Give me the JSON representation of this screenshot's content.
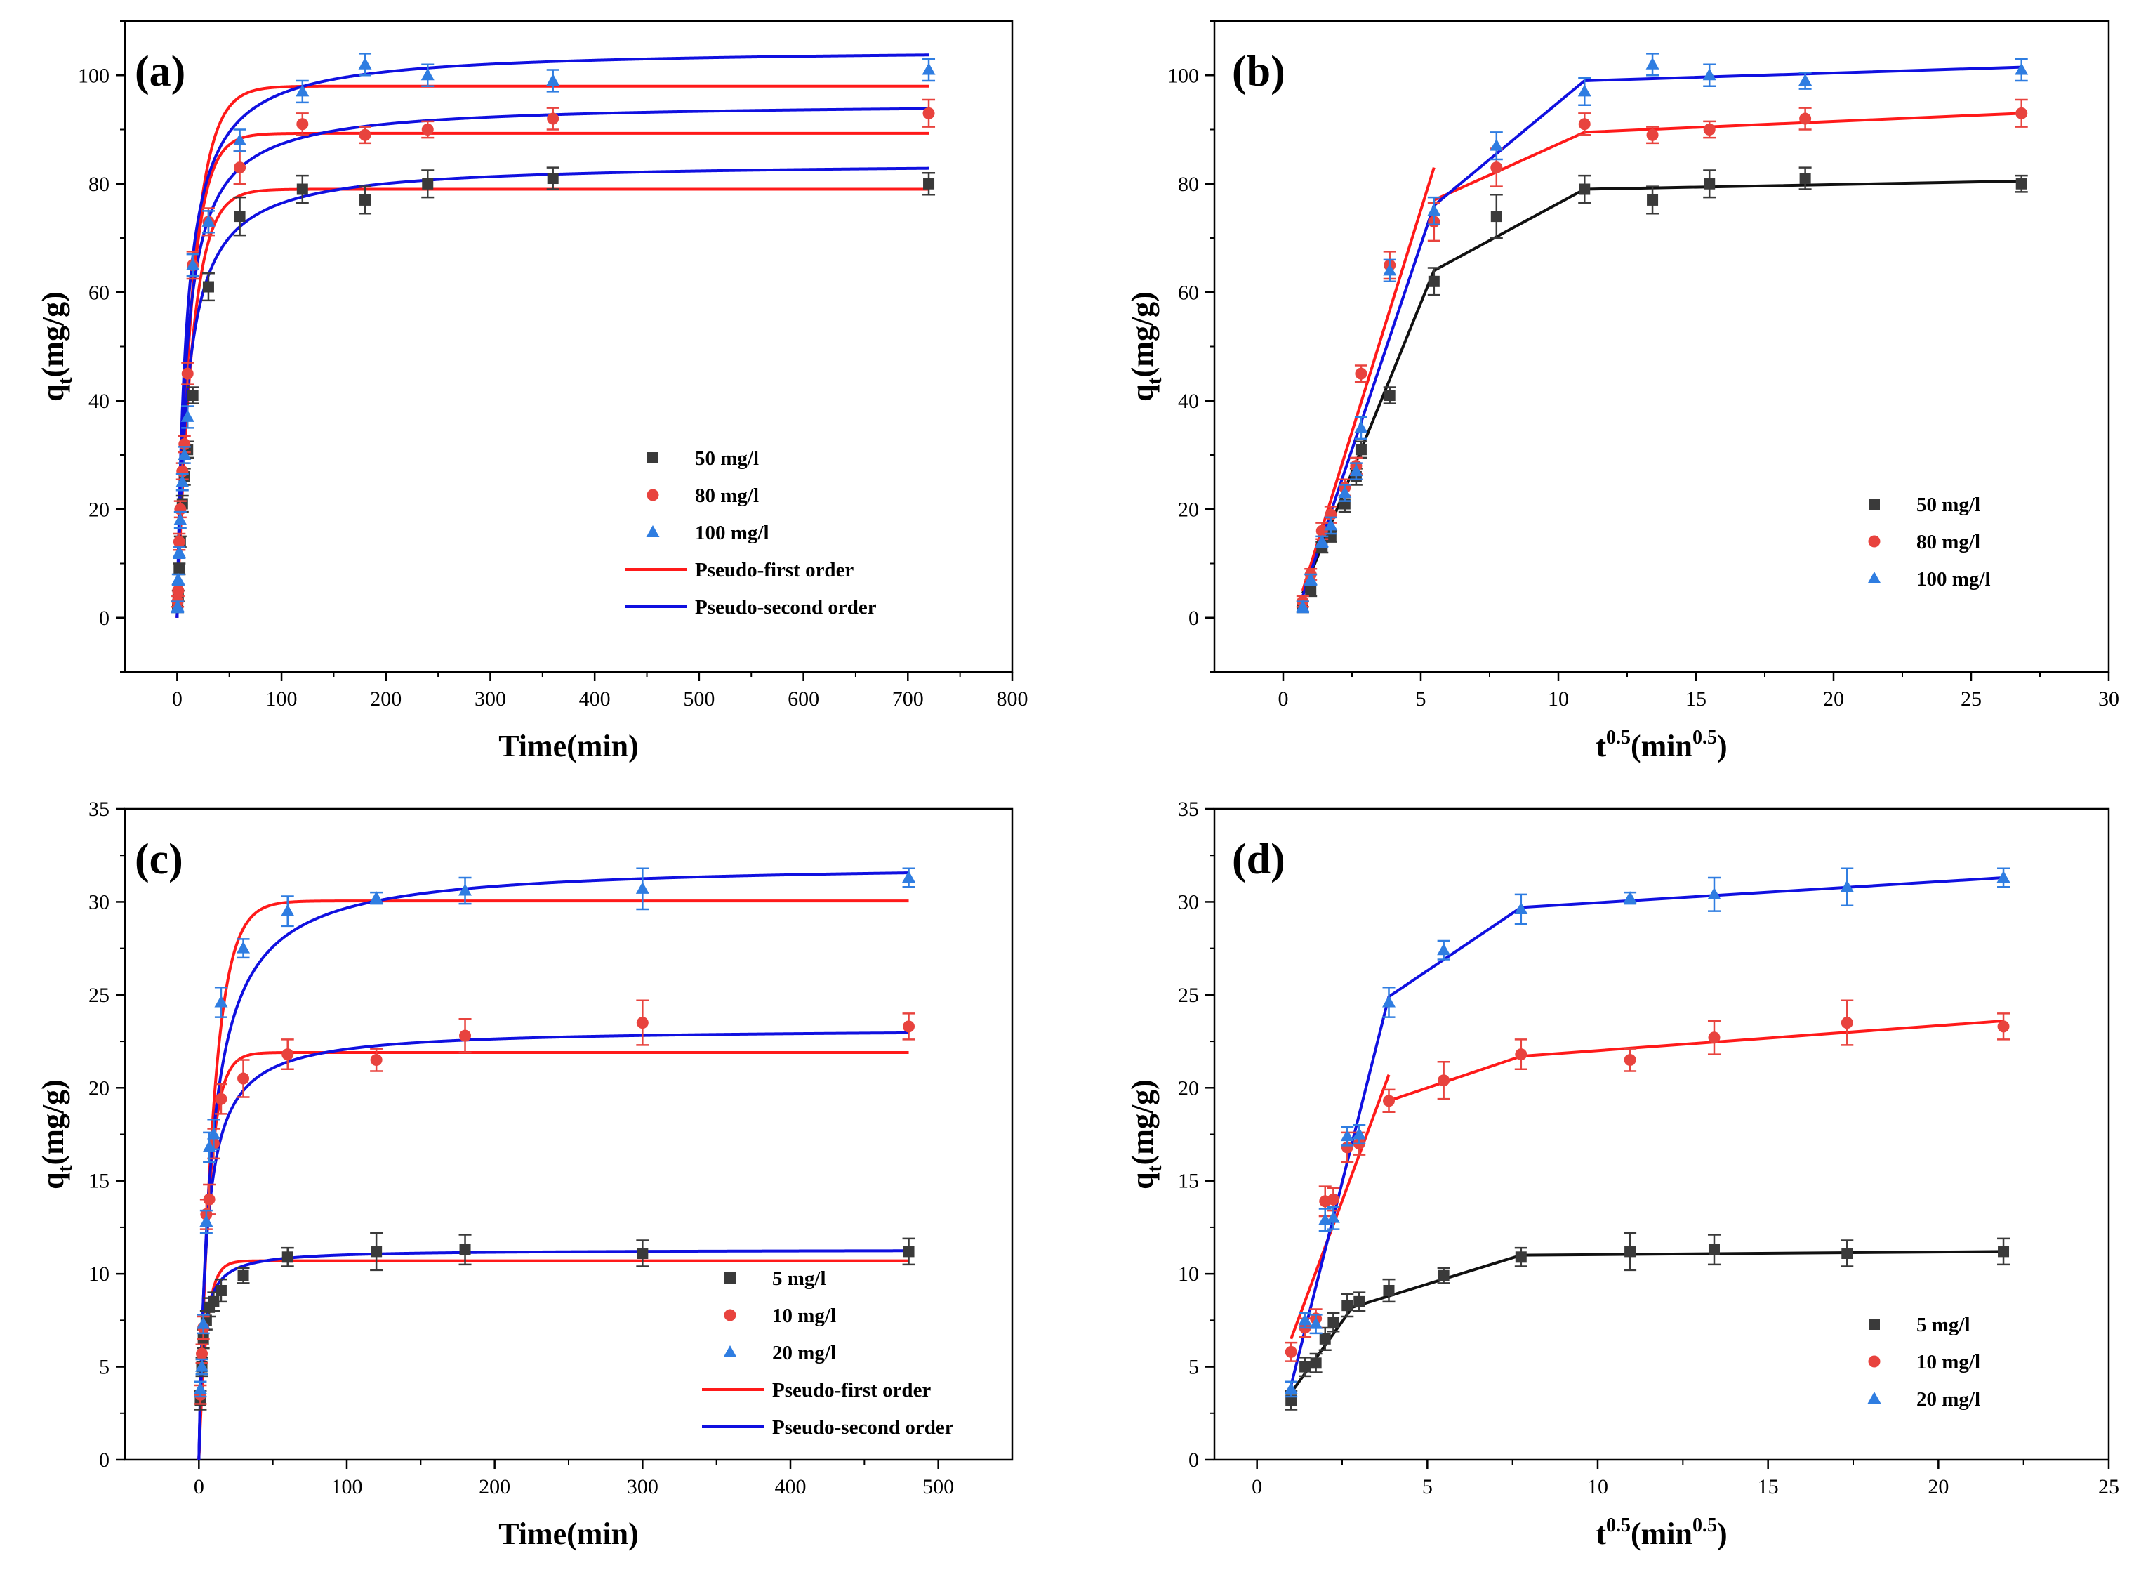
{
  "colors": {
    "black_series": "#3a3a3a",
    "red_series": "#e8433e",
    "blue_series": "#2f7de1",
    "pfo_line": "#ff1a1a",
    "pso_line": "#1010e0"
  },
  "chart_data": [
    {
      "type": "scatter",
      "panel_label": "(a)",
      "xlabel": "Time(min)",
      "ylabel_main": "q",
      "ylabel_sub": "t",
      "ylabel_unit": "(mg/g)",
      "xlim": [
        -50,
        800
      ],
      "ylim": [
        -10,
        110
      ],
      "xticks": [
        0,
        100,
        200,
        300,
        400,
        500,
        600,
        700,
        800
      ],
      "yticks": [
        0,
        20,
        40,
        60,
        80,
        100
      ],
      "x": [
        0.5,
        1,
        2,
        3,
        5,
        7,
        10,
        15,
        30,
        60,
        120,
        180,
        240,
        360,
        720
      ],
      "series": [
        {
          "name": "50 mg/l",
          "marker": "square",
          "color": "#3a3a3a",
          "values": [
            2,
            4,
            9,
            14,
            21,
            26,
            31,
            41,
            61,
            74,
            79,
            77,
            80,
            81,
            80
          ],
          "err": [
            1,
            1,
            1,
            1,
            1.5,
            1.5,
            1.5,
            1.5,
            2.5,
            3.5,
            2.5,
            2.5,
            2.5,
            2,
            2
          ]
        },
        {
          "name": "80 mg/l",
          "marker": "circle",
          "color": "#e8433e",
          "values": [
            3,
            5,
            14,
            20,
            27,
            32,
            45,
            65,
            73,
            83,
            91,
            89,
            90,
            92,
            93
          ],
          "err": [
            1,
            1,
            1.5,
            1.5,
            1.5,
            1.5,
            2,
            2.5,
            2.5,
            3,
            2,
            1.5,
            1.5,
            2,
            2.5
          ]
        },
        {
          "name": "100 mg/l",
          "marker": "triangle",
          "color": "#2f7de1",
          "values": [
            2,
            7,
            12,
            18,
            25,
            30,
            37,
            65,
            73,
            88,
            97,
            102,
            100,
            99,
            101
          ],
          "err": [
            1,
            1,
            1,
            1.5,
            1.5,
            1.5,
            2,
            2,
            2,
            2,
            2,
            2,
            2,
            2,
            2
          ]
        }
      ],
      "fits": [
        {
          "name": "Pseudo-first order",
          "kind": "pfo",
          "color": "#ff1a1a",
          "curves": [
            [
              79,
              0.07
            ],
            [
              89.3,
              0.075
            ],
            [
              98,
              0.065
            ]
          ]
        },
        {
          "name": "Pseudo-second order",
          "kind": "pso",
          "color": "#1010e0",
          "curves": [
            [
              84,
              0.0012
            ],
            [
              95,
              0.0012
            ],
            [
              105,
              0.0011
            ]
          ]
        }
      ],
      "legend_position": "lower-right"
    },
    {
      "type": "line",
      "panel_label": "(b)",
      "xlabel_main": "t",
      "xlabel_sup": "0.5",
      "xlabel_mid": "(min",
      "xlabel_sup2": "0.5",
      "xlabel_end": ")",
      "ylabel_main": "q",
      "ylabel_sub": "t",
      "ylabel_unit": "(mg/g)",
      "xlim": [
        -2.5,
        30
      ],
      "ylim": [
        -10,
        110
      ],
      "xticks": [
        0,
        5,
        10,
        15,
        20,
        25,
        30
      ],
      "yticks": [
        0,
        20,
        40,
        60,
        80,
        100
      ],
      "x": [
        0.71,
        1,
        1.41,
        1.73,
        2.24,
        2.65,
        2.83,
        3.87,
        5.48,
        7.75,
        10.95,
        13.42,
        15.49,
        18.97,
        26.83
      ],
      "series": [
        {
          "name": "50 mg/l",
          "marker": "square",
          "color": "#3a3a3a",
          "values": [
            2,
            5,
            13,
            15,
            21,
            26,
            31,
            41,
            62,
            74,
            79,
            77,
            80,
            81,
            80
          ],
          "err": [
            1,
            1,
            1,
            1,
            1.5,
            1.5,
            1.5,
            1.5,
            2.5,
            4,
            2.5,
            2.5,
            2.5,
            2,
            1.5
          ],
          "fit": [
            [
              0.71,
              4.5
            ],
            [
              5.48,
              64
            ],
            [
              10.95,
              79
            ],
            [
              26.83,
              80.5
            ]
          ]
        },
        {
          "name": "80 mg/l",
          "marker": "circle",
          "color": "#e8433e",
          "values": [
            3,
            8,
            16,
            19,
            24,
            28,
            45,
            65,
            73,
            83,
            91,
            89,
            90,
            92,
            93
          ],
          "err": [
            1,
            1,
            1.5,
            1.5,
            1.5,
            1.5,
            1.5,
            2.5,
            3.5,
            3.5,
            2,
            1.5,
            1.5,
            2,
            2.5
          ],
          "fit": [
            [
              0.71,
              5
            ],
            [
              5.48,
              83
            ],
            null,
            [
              5.48,
              77
            ],
            [
              10.95,
              89.5
            ],
            [
              26.83,
              93
            ]
          ]
        },
        {
          "name": "100 mg/l",
          "marker": "triangle",
          "color": "#2f7de1",
          "values": [
            2,
            7,
            14,
            17,
            23,
            27,
            35,
            64,
            75,
            87,
            97,
            102,
            100,
            99,
            101
          ],
          "err": [
            1,
            1,
            1,
            1.5,
            1.5,
            1.5,
            2,
            2,
            2.5,
            2.5,
            2.5,
            2,
            2,
            1.5,
            2
          ],
          "fit": [
            [
              0.71,
              4
            ],
            [
              5.48,
              76
            ],
            [
              10.95,
              99
            ],
            [
              26.83,
              101.5
            ]
          ]
        }
      ],
      "legend_position": "lower-right"
    },
    {
      "type": "scatter",
      "panel_label": "(c)",
      "xlabel": "Time(min)",
      "ylabel_main": "q",
      "ylabel_sub": "t",
      "ylabel_unit": "(mg/g)",
      "xlim": [
        -50,
        550
      ],
      "ylim": [
        0,
        35
      ],
      "xticks": [
        0,
        100,
        200,
        300,
        400,
        500
      ],
      "yticks": [
        0,
        5,
        10,
        15,
        20,
        25,
        30,
        35
      ],
      "x": [
        1,
        2,
        3,
        5,
        7,
        10,
        15,
        30,
        60,
        120,
        180,
        300,
        480
      ],
      "series": [
        {
          "name": "5 mg/l",
          "marker": "square",
          "color": "#3a3a3a",
          "values": [
            3.2,
            5,
            6.5,
            7.5,
            8.2,
            8.5,
            9.1,
            9.9,
            10.9,
            11.2,
            11.3,
            11.1,
            11.2
          ],
          "err": [
            0.5,
            0.5,
            0.5,
            0.5,
            0.5,
            0.5,
            0.6,
            0.4,
            0.5,
            1,
            0.8,
            0.7,
            0.7
          ]
        },
        {
          "name": "10 mg/l",
          "marker": "circle",
          "color": "#e8433e",
          "values": [
            3.5,
            5.7,
            7.1,
            13.2,
            14,
            17,
            19.4,
            20.5,
            21.8,
            21.5,
            22.8,
            23.5,
            23.3
          ],
          "err": [
            0.5,
            0.5,
            0.6,
            0.8,
            0.8,
            0.8,
            0.8,
            1,
            0.8,
            0.6,
            0.9,
            1.2,
            0.7
          ]
        },
        {
          "name": "20 mg/l",
          "marker": "triangle",
          "color": "#2f7de1",
          "values": [
            3.8,
            5,
            7.3,
            12.8,
            16.8,
            17.5,
            24.6,
            27.5,
            29.5,
            30.2,
            30.6,
            30.7,
            31.3
          ],
          "err": [
            0.4,
            0.4,
            0.5,
            0.6,
            0.8,
            0.8,
            0.8,
            0.5,
            0.8,
            0.3,
            0.7,
            1.1,
            0.5
          ]
        }
      ],
      "fits": [
        {
          "name": "Pseudo-first order",
          "kind": "pfo",
          "color": "#ff1a1a",
          "curves": [
            [
              10.7,
              0.2
            ],
            [
              21.9,
              0.15
            ],
            [
              30.05,
              0.1
            ]
          ]
        },
        {
          "name": "Pseudo-second order",
          "kind": "pso",
          "color": "#1010e0",
          "curves": [
            [
              11.3,
              0.035
            ],
            [
              23.2,
              0.0085
            ],
            [
              32.1,
              0.0038
            ]
          ]
        }
      ],
      "legend_position": "lower-right"
    },
    {
      "type": "line",
      "panel_label": "(d)",
      "xlabel_main": "t",
      "xlabel_sup": "0.5",
      "xlabel_mid": "(min",
      "xlabel_sup2": "0.5",
      "xlabel_end": ")",
      "ylabel_main": "q",
      "ylabel_sub": "t",
      "ylabel_unit": "(mg/g)",
      "xlim": [
        -1.25,
        25
      ],
      "ylim": [
        0,
        35
      ],
      "xticks": [
        0,
        5,
        10,
        15,
        20,
        25
      ],
      "yticks": [
        0,
        5,
        10,
        15,
        20,
        25,
        30,
        35
      ],
      "x": [
        1,
        1.41,
        1.73,
        2,
        2.24,
        2.65,
        3,
        3.87,
        5.48,
        7.75,
        10.95,
        13.42,
        17.32,
        21.91
      ],
      "series": [
        {
          "name": "5 mg/l",
          "marker": "square",
          "color": "#3a3a3a",
          "values": [
            3.2,
            5,
            5.2,
            6.5,
            7.4,
            8.3,
            8.5,
            9.1,
            9.9,
            10.9,
            11.2,
            11.3,
            11.1,
            11.2
          ],
          "err": [
            0.5,
            0.5,
            0.5,
            0.6,
            0.5,
            0.6,
            0.5,
            0.6,
            0.4,
            0.5,
            1,
            0.8,
            0.7,
            0.7
          ],
          "fit": [
            [
              1,
              3.6
            ],
            [
              2.8,
              8.2
            ],
            [
              7.75,
              11
            ],
            [
              21.91,
              11.2
            ]
          ]
        },
        {
          "name": "10 mg/l",
          "marker": "circle",
          "color": "#e8433e",
          "values": [
            5.8,
            7.1,
            7.6,
            13.9,
            14,
            16.8,
            17,
            19.3,
            20.4,
            21.8,
            21.5,
            22.7,
            23.5,
            23.3
          ],
          "err": [
            0.5,
            0.5,
            0.5,
            0.8,
            0.6,
            0.8,
            0.6,
            0.6,
            1,
            0.8,
            0.6,
            0.9,
            1.2,
            0.7
          ],
          "fit": [
            [
              1,
              6.5
            ],
            [
              3.87,
              20.7
            ],
            null,
            [
              3.87,
              19.3
            ],
            [
              7.75,
              21.7
            ],
            [
              21.91,
              23.6
            ]
          ]
        },
        {
          "name": "20 mg/l",
          "marker": "triangle",
          "color": "#2f7de1",
          "values": [
            3.8,
            7.5,
            7.3,
            12.9,
            13,
            17.4,
            17.5,
            24.6,
            27.4,
            29.6,
            30.2,
            30.4,
            30.8,
            31.3
          ],
          "err": [
            0.4,
            0.4,
            0.5,
            0.6,
            0.6,
            0.5,
            0.5,
            0.8,
            0.5,
            0.8,
            0.3,
            0.9,
            1,
            0.5
          ],
          "fit": [
            [
              1,
              4
            ],
            [
              3.87,
              24.9
            ],
            [
              7.75,
              29.7
            ],
            [
              21.91,
              31.3
            ]
          ]
        }
      ],
      "legend_position": "lower-right"
    }
  ]
}
